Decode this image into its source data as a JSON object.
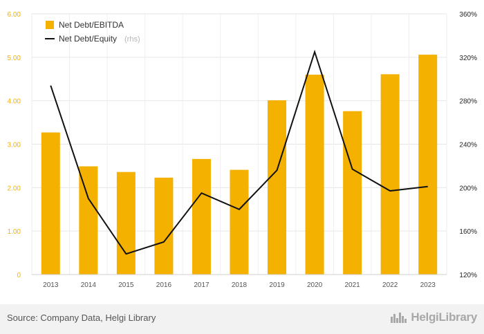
{
  "chart_data": {
    "type": "bar",
    "categories": [
      "2013",
      "2014",
      "2015",
      "2016",
      "2017",
      "2018",
      "2019",
      "2020",
      "2021",
      "2022",
      "2023"
    ],
    "series": [
      {
        "name": "Net Debt/EBITDA",
        "type": "bar",
        "axis": "left",
        "color": "#f5b100",
        "values": [
          3.27,
          2.49,
          2.36,
          2.23,
          2.66,
          2.41,
          4.01,
          4.6,
          3.76,
          4.61,
          5.06
        ]
      },
      {
        "name": "Net Debt/Equity",
        "type": "line",
        "axis": "right",
        "color": "#111111",
        "values": [
          294,
          190,
          139,
          150,
          195,
          180,
          216,
          325,
          217,
          197,
          201
        ]
      }
    ],
    "y_left": {
      "min": 0,
      "max": 6,
      "ticks": [
        "0",
        "1.00",
        "2.00",
        "3.00",
        "4.00",
        "5.00",
        "6.00"
      ],
      "color": "#f5b100"
    },
    "y_right": {
      "min": 120,
      "max": 360,
      "ticks": [
        "120%",
        "160%",
        "200%",
        "240%",
        "280%",
        "320%",
        "360%"
      ]
    },
    "legend": {
      "placement": "top-left",
      "items": [
        {
          "label": "Net Debt/EBITDA",
          "suffix": ""
        },
        {
          "label": "Net Debt/Equity",
          "suffix": "(rhs)"
        }
      ]
    },
    "grid": true
  },
  "footer": {
    "source": "Source: Company Data, Helgi Library",
    "brand": "HelgiLibrary",
    "brand_icon": "city-skyline-icon"
  }
}
